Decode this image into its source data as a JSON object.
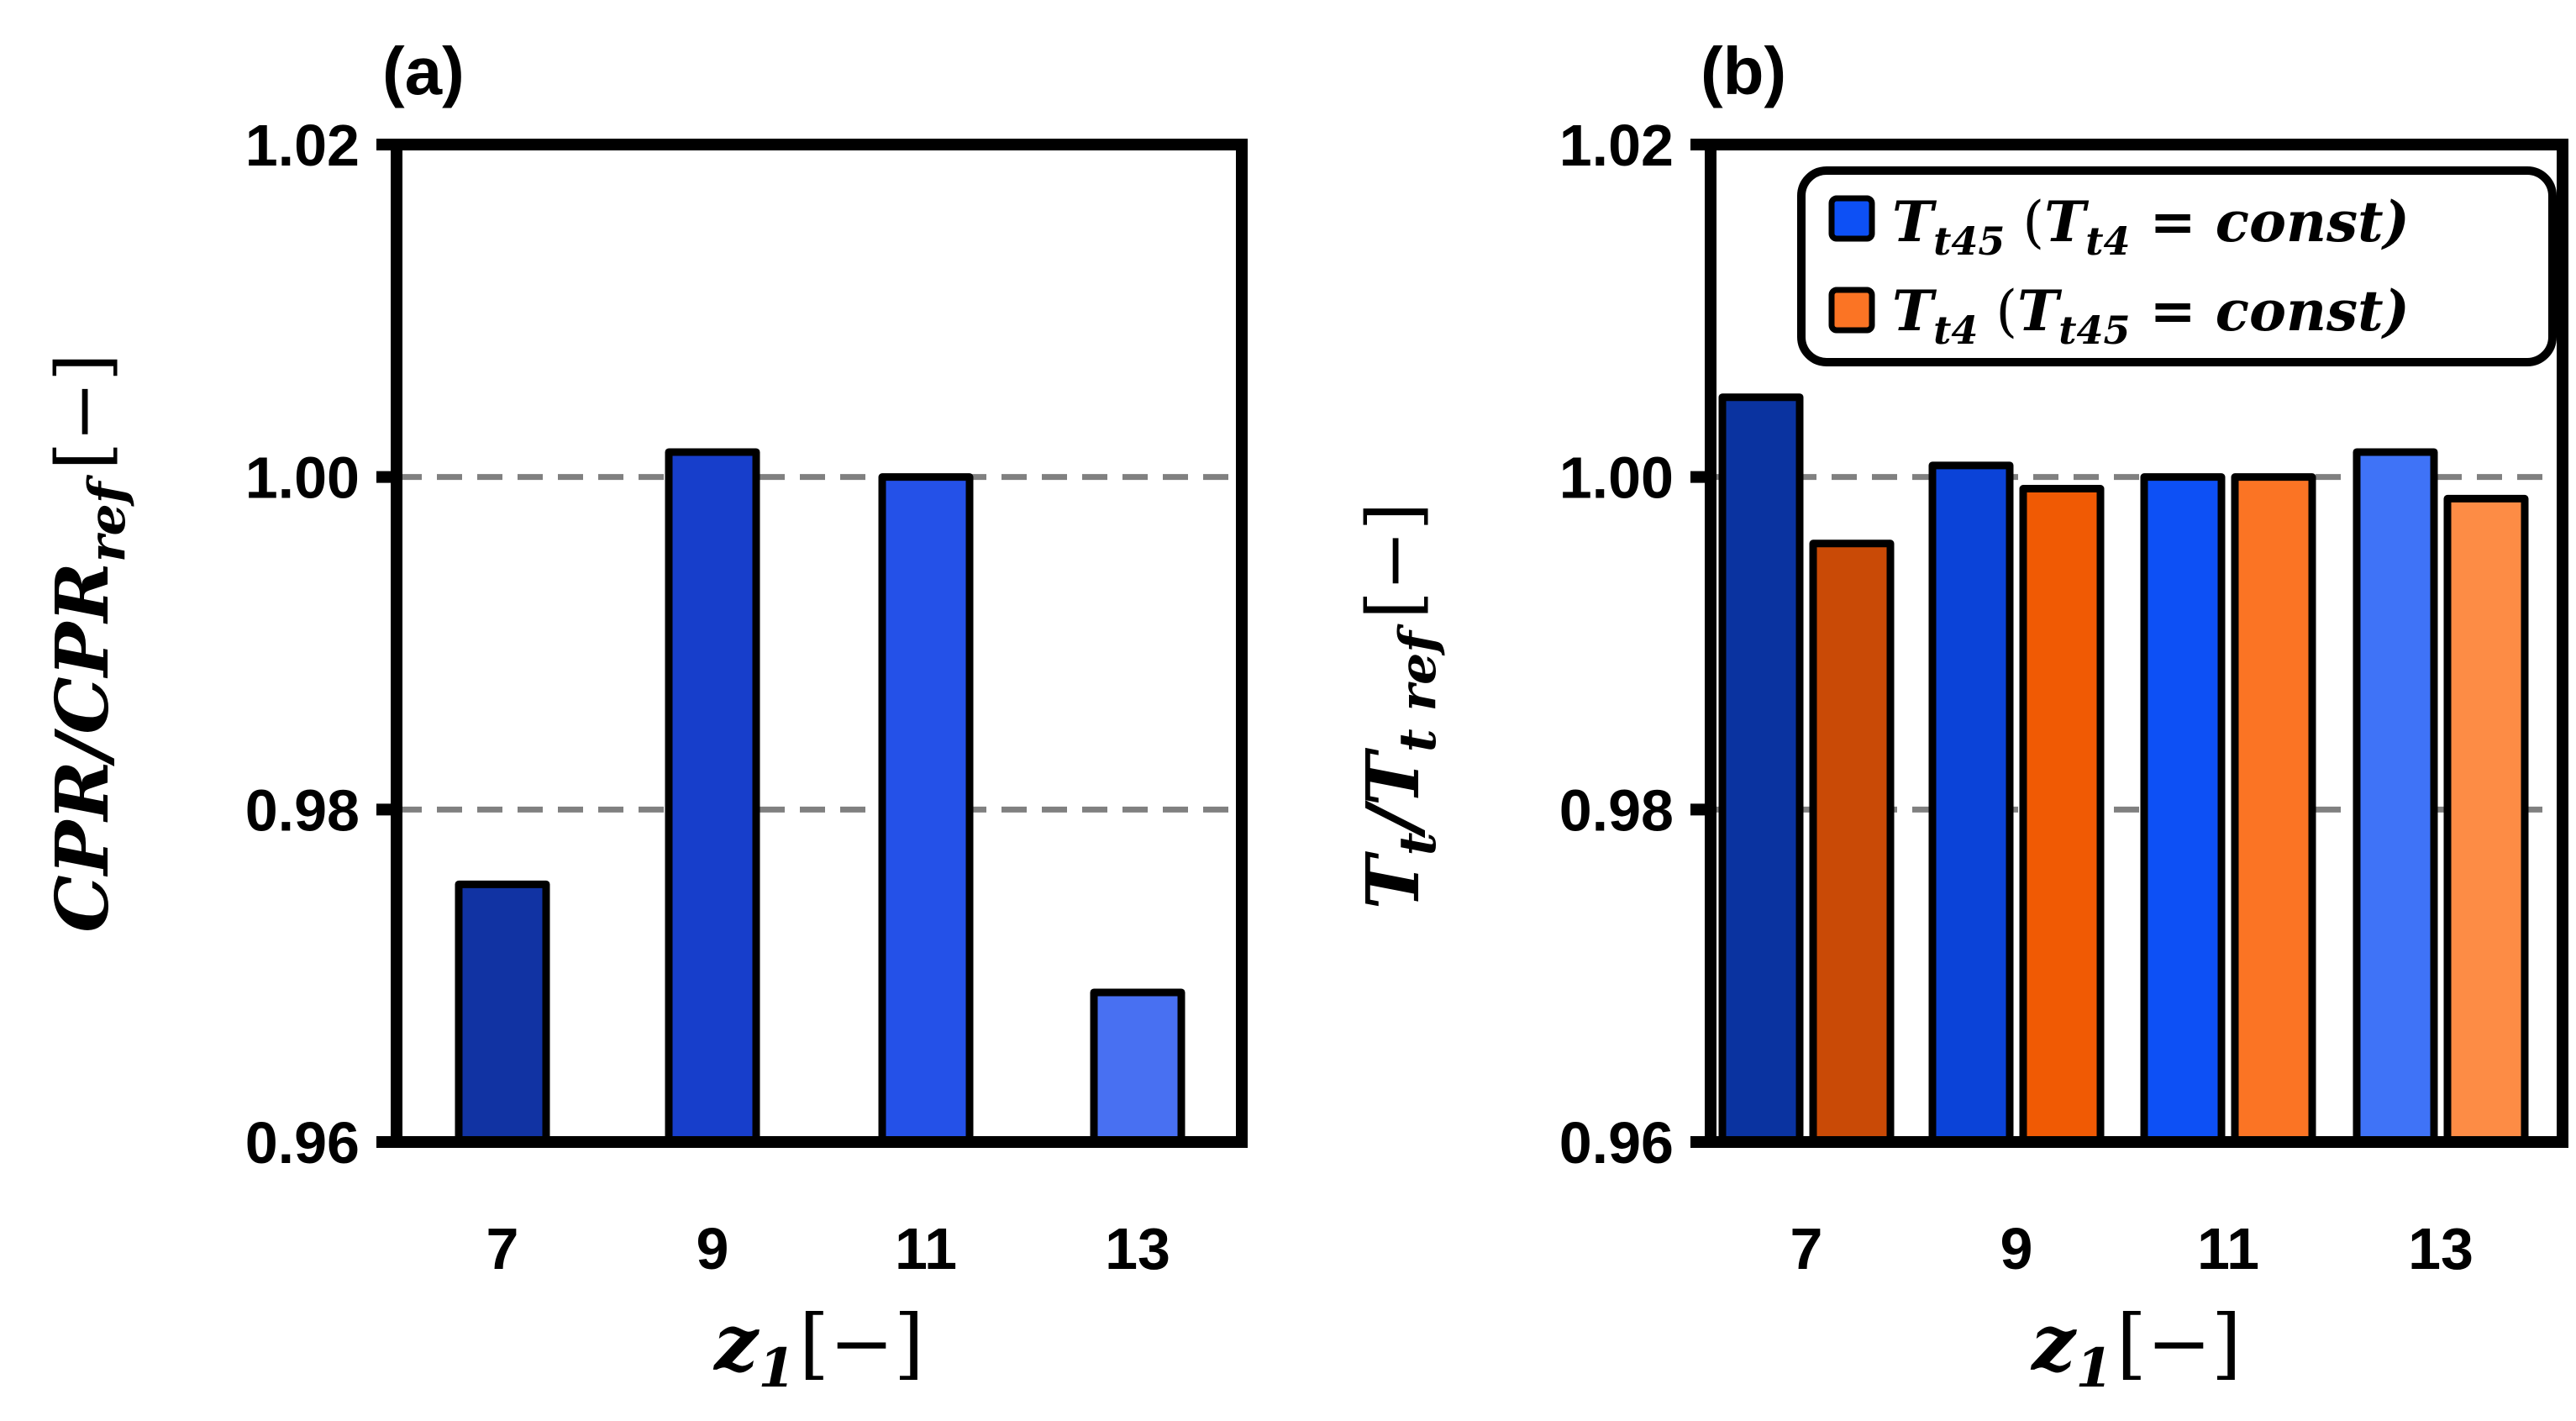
{
  "chart_data": [
    {
      "panel_label": "(a)",
      "type": "bar",
      "categories": [
        "7",
        "9",
        "11",
        "13"
      ],
      "series": [
        {
          "name": "CPR/CPR_ref",
          "values": [
            0.9755,
            1.0015,
            1.0,
            0.969
          ],
          "colors": [
            "#1133a3",
            "#173ecb",
            "#2451e8",
            "#4870f2"
          ]
        }
      ],
      "ylabel": {
        "main": "CPR/CPR",
        "sub": "ref",
        "unit": "[−]"
      },
      "xlabel": {
        "main": "z",
        "sub": "1",
        "unit": "[−]"
      },
      "ylim": [
        0.96,
        1.02
      ],
      "yticks": [
        "0.96",
        "0.98",
        "1.00",
        "1.02"
      ],
      "ytick_values": [
        0.96,
        0.98,
        1.0,
        1.02
      ],
      "reference_lines": [
        0.98,
        1.0
      ]
    },
    {
      "panel_label": "(b)",
      "type": "bar",
      "categories": [
        "7",
        "9",
        "11",
        "13"
      ],
      "series": [
        {
          "name": "T_t45 (T_t4 = const)",
          "legend": {
            "main": "T",
            "sub": "t45",
            "rest_open": " (",
            "inner": "T",
            "inner_sub": "t4",
            "rest_close": " = const)"
          },
          "values": [
            1.0048,
            1.0007,
            1.0,
            1.0015
          ],
          "colors": [
            "#0a33a0",
            "#0b43d8",
            "#0d50f5",
            "#3f73f7"
          ],
          "legend_color": "#0d50f5"
        },
        {
          "name": "T_t4 (T_t45 = const)",
          "legend": {
            "main": "T",
            "sub": "t4",
            "rest_open": "  (",
            "inner": "T",
            "inner_sub": "t45",
            "rest_close": " = const)"
          },
          "values": [
            0.996,
            0.9993,
            1.0,
            0.9987
          ],
          "colors": [
            "#c94a06",
            "#f05a04",
            "#fb7424",
            "#fd8c45"
          ],
          "legend_color": "#fb7424"
        }
      ],
      "ylabel": {
        "main": "T",
        "sub": "t",
        "mid": "/T",
        "sub2": "t ref",
        "unit": "[−]"
      },
      "xlabel": {
        "main": "z",
        "sub": "1",
        "unit": "[−]"
      },
      "ylim": [
        0.96,
        1.02
      ],
      "yticks": [
        "0.96",
        "0.98",
        "1.00",
        "1.02"
      ],
      "ytick_values": [
        0.96,
        0.98,
        1.0,
        1.02
      ],
      "reference_lines": [
        0.98,
        1.0
      ],
      "legend_position": "top-right"
    }
  ],
  "colors": {
    "axis": "#000000",
    "reference_line": "#808080",
    "bar_outline": "#000000"
  }
}
